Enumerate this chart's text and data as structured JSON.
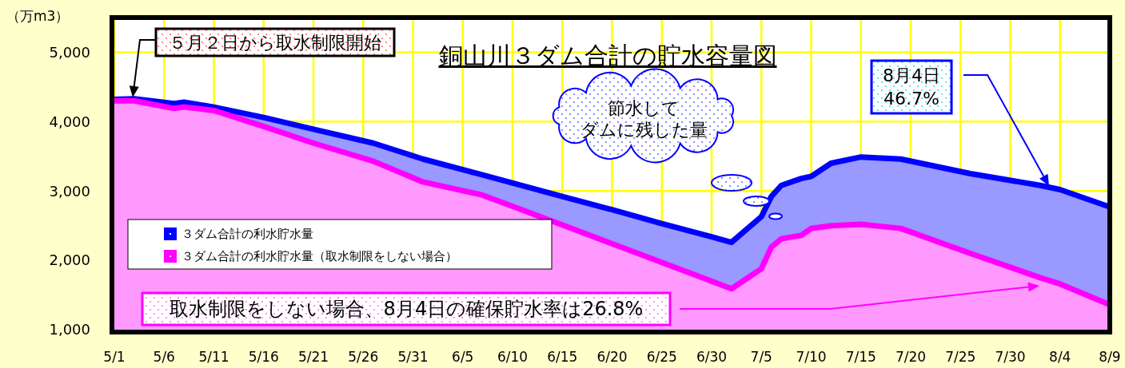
{
  "chart_data": {
    "type": "area",
    "title": "銅山川３ダム合計の貯水容量図",
    "ylabel": "（万m3）",
    "x": [
      "--05-01",
      "--05-03",
      "--05-07",
      "--05-08",
      "--05-11",
      "--05-16",
      "--05-21",
      "--05-27",
      "--06-01",
      "--06-07",
      "--06-15",
      "--06-20",
      "--06-25",
      "--06-30",
      "--07-02",
      "--07-05",
      "--07-06",
      "--07-07",
      "--07-09",
      "--07-10",
      "--07-12",
      "--07-15",
      "--07-19",
      "--07-26",
      "--08-02",
      "--08-04",
      "--08-09"
    ],
    "series": [
      {
        "name": "３ダム合計の利水貯水量",
        "color": "#0000ff",
        "values": [
          4320,
          4330,
          4260,
          4280,
          4210,
          4060,
          3890,
          3690,
          3460,
          3230,
          2920,
          2730,
          2530,
          2340,
          2260,
          2630,
          2920,
          3080,
          3180,
          3210,
          3400,
          3490,
          3460,
          3250,
          3080,
          3020,
          2770
        ]
      },
      {
        "name": "３ダム合計の利水貯水量（取水制限をしない場合）",
        "color": "#ff00ff",
        "values": [
          4300,
          4300,
          4190,
          4210,
          4160,
          3930,
          3690,
          3430,
          3130,
          2940,
          2510,
          2240,
          1970,
          1700,
          1590,
          1880,
          2190,
          2310,
          2360,
          2460,
          2500,
          2520,
          2460,
          2100,
          1750,
          1660,
          1360
        ]
      }
    ],
    "xlim": [
      "--05-01",
      "--08-09"
    ],
    "xticks": [
      {
        "value": "--05-01",
        "label": "5/1"
      },
      {
        "value": "--05-06",
        "label": "5/6"
      },
      {
        "value": "--05-11",
        "label": "5/11"
      },
      {
        "value": "--05-16",
        "label": "5/16"
      },
      {
        "value": "--05-21",
        "label": "5/21"
      },
      {
        "value": "--05-26",
        "label": "5/26"
      },
      {
        "value": "--05-31",
        "label": "5/31"
      },
      {
        "value": "--06-05",
        "label": "6/5"
      },
      {
        "value": "--06-10",
        "label": "6/10"
      },
      {
        "value": "--06-15",
        "label": "6/15"
      },
      {
        "value": "--06-20",
        "label": "6/20"
      },
      {
        "value": "--06-25",
        "label": "6/25"
      },
      {
        "value": "--06-30",
        "label": "6/30"
      },
      {
        "value": "--07-05",
        "label": "7/5"
      },
      {
        "value": "--07-10",
        "label": "7/10"
      },
      {
        "value": "--07-15",
        "label": "7/15"
      },
      {
        "value": "--07-20",
        "label": "7/20"
      },
      {
        "value": "--07-25",
        "label": "7/25"
      },
      {
        "value": "--07-30",
        "label": "7/30"
      },
      {
        "value": "--08-04",
        "label": "8/4"
      },
      {
        "value": "--08-09",
        "label": "8/9"
      }
    ],
    "ylim": [
      1000,
      5500
    ],
    "yticks": [
      {
        "value": 1000,
        "label": "1,000"
      },
      {
        "value": 2000,
        "label": "2,000"
      },
      {
        "value": 3000,
        "label": "3,000"
      },
      {
        "value": 4000,
        "label": "4,000"
      },
      {
        "value": 5000,
        "label": "5,000"
      }
    ],
    "grid": true,
    "legend": "bottom left",
    "annotations": [
      "５月２日から取水制限開始",
      "節水して",
      "ダムに残した量",
      "8月4日\n46.7%",
      "取水制限をしない場合、8月4日の確保貯水率は26.8%"
    ]
  }
}
